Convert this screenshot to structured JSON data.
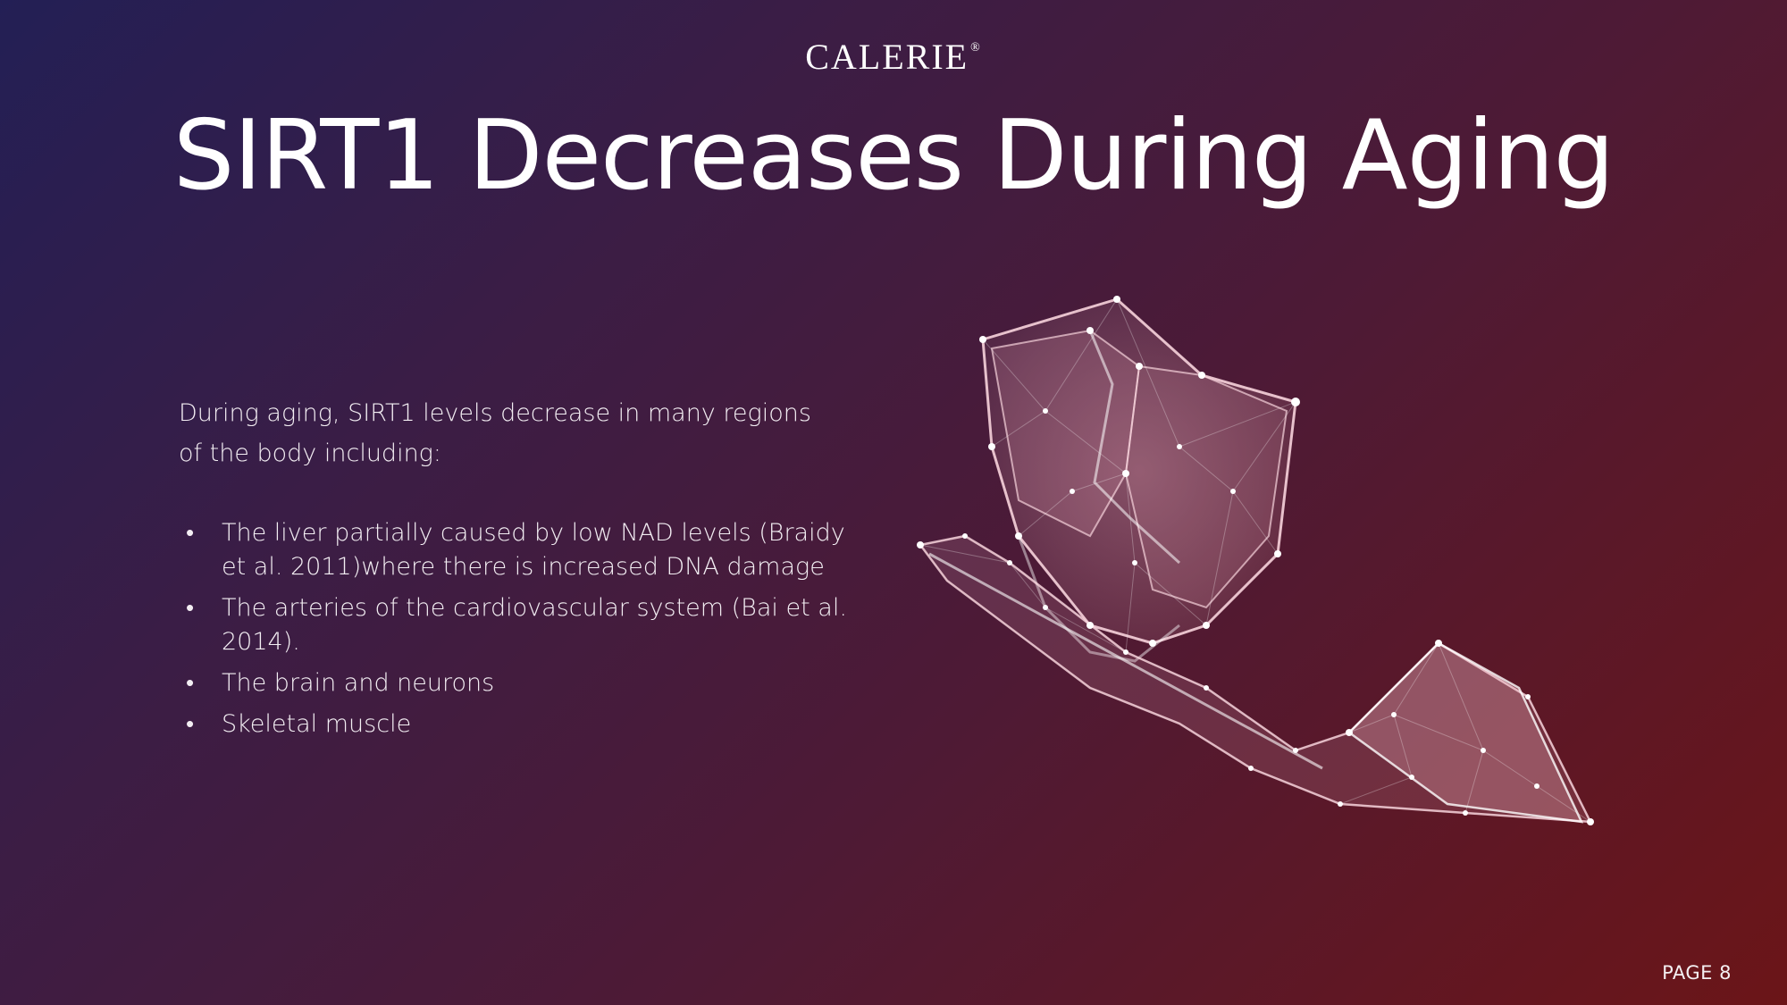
{
  "brand": {
    "name": "CALERIE",
    "mark": "®"
  },
  "title": "SIRT1 Decreases During Aging",
  "intro": {
    "line1": "During aging, SIRT1 levels decrease in many regions",
    "line2": "of the body including:"
  },
  "bullets": [
    "The liver partially caused by low NAD levels (Braidy et al. 2011)where there is increased DNA damage",
    "The arteries of the cardiovascular system (Bai et al. 2014).",
    "The brain and neurons",
    "Skeletal muscle"
  ],
  "illustration": {
    "icon": "shield-with-down-arrow-icon"
  },
  "footer": {
    "page": "PAGE 8"
  },
  "colors": {
    "accent": "#f2b6c2",
    "bg_start": "#231f55",
    "bg_end": "#6b1518"
  }
}
